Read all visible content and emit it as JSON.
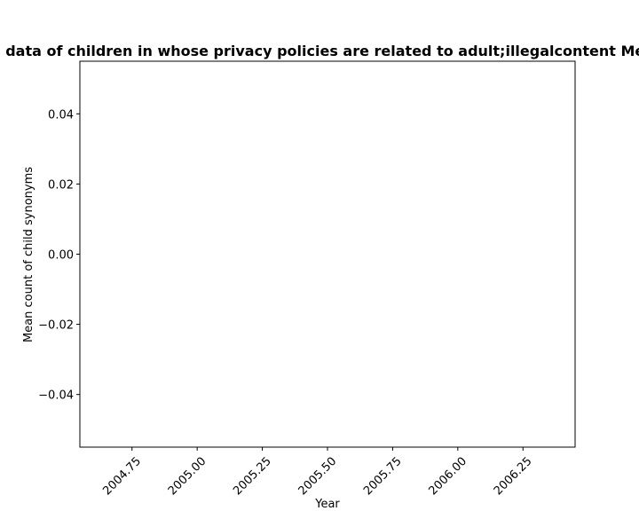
{
  "chart_data": {
    "type": "line",
    "title": "Percentage of websites that collect personal data of children in whose privacy policies are related to adult;illegalcontent Mean count of child synonyms in privacy policies",
    "xlabel": "Year",
    "ylabel": "Mean count of child synonyms",
    "xlim": [
      2004.55,
      2006.45
    ],
    "ylim": [
      -0.055,
      0.055
    ],
    "xticks": [
      2004.75,
      2005.0,
      2005.25,
      2005.5,
      2005.75,
      2006.0,
      2006.25
    ],
    "xtick_labels": [
      "2004.75",
      "2005.00",
      "2005.25",
      "2005.50",
      "2005.75",
      "2006.00",
      "2006.25"
    ],
    "yticks": [
      0.04,
      0.02,
      0.0,
      -0.02,
      -0.04
    ],
    "ytick_labels": [
      "0.04",
      "0.02",
      "0.00",
      "−0.02",
      "−0.04"
    ],
    "grid": false,
    "series": []
  }
}
